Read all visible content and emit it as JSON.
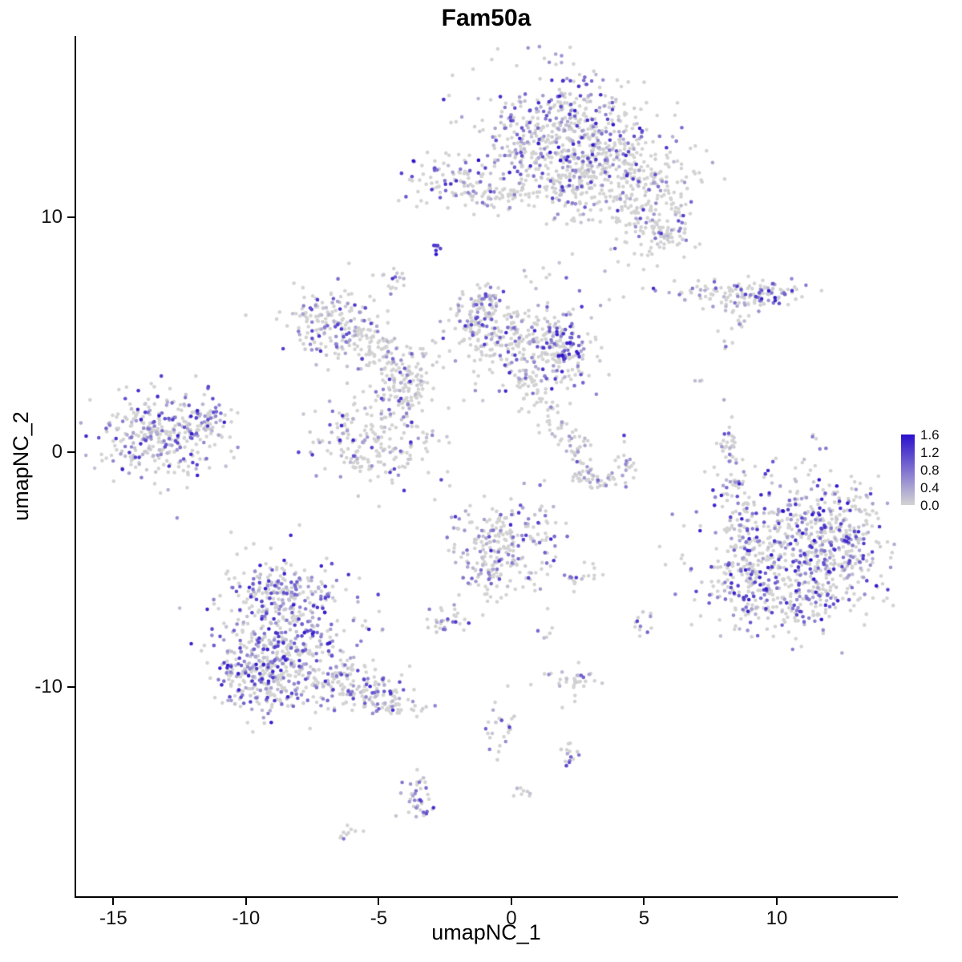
{
  "title": "Fam50a",
  "chart_data": {
    "type": "scatter",
    "variant": "umap-feature-plot",
    "title": "Fam50a",
    "xlabel": "umapNC_1",
    "ylabel": "umapNC_2",
    "xlim": [
      -16.4,
      14.5
    ],
    "ylim": [
      -18.9,
      17.7
    ],
    "x_ticks": {
      "values": [
        -15,
        -10,
        -5,
        0,
        5,
        10
      ],
      "labels": [
        "-15",
        "-10",
        "-5",
        "0",
        "5",
        "10"
      ]
    },
    "y_ticks": {
      "values": [
        10,
        0,
        -10
      ],
      "labels": [
        "10",
        "0",
        "-10"
      ]
    },
    "grid": false,
    "point_radius_px": 2.3,
    "colors": {
      "low": "#d3d3d3",
      "high": "#2a10cc",
      "axis": "#000000",
      "text": "#111111"
    },
    "legend": {
      "position": "right",
      "min": 0.0,
      "max": 1.6,
      "labels": [
        "1.6",
        "1.2",
        "0.8",
        "0.4",
        "0.0"
      ]
    },
    "clusters": [
      {
        "name": "top-core",
        "x": 1.9,
        "y": 14.0,
        "sx": 1.5,
        "sy": 1.3,
        "n": 320,
        "frac": 0.55,
        "vmax": 1.6
      },
      {
        "name": "top-core-b",
        "x": 2.7,
        "y": 13.1,
        "sx": 1.1,
        "sy": 0.9,
        "n": 150,
        "frac": 0.5,
        "vmax": 1.5
      },
      {
        "name": "top-right",
        "x": 4.3,
        "y": 11.9,
        "sx": 1.2,
        "sy": 1.0,
        "n": 220,
        "frac": 0.32,
        "vmax": 1.4
      },
      {
        "name": "top-tail-se",
        "x": 5.3,
        "y": 10.2,
        "sx": 0.8,
        "sy": 0.9,
        "n": 110,
        "frac": 0.3,
        "vmax": 1.3
      },
      {
        "name": "top-tail-tip",
        "x": 5.9,
        "y": 9.4,
        "sx": 0.5,
        "sy": 0.5,
        "n": 50,
        "frac": 0.35,
        "vmax": 1.3
      },
      {
        "name": "top-neck",
        "x": 2.4,
        "y": 11.2,
        "sx": 0.7,
        "sy": 0.8,
        "n": 90,
        "frac": 0.3,
        "vmax": 1.2
      },
      {
        "name": "top-left-edge",
        "x": 0.6,
        "y": 12.6,
        "sx": 0.6,
        "sy": 1.0,
        "n": 80,
        "frac": 0.45,
        "vmax": 1.5
      },
      {
        "name": "upper-left",
        "x": -2.2,
        "y": 11.5,
        "sx": 0.9,
        "sy": 0.55,
        "n": 100,
        "frac": 0.5,
        "vmax": 1.6
      },
      {
        "name": "upper-left-strand",
        "x": -0.7,
        "y": 11.0,
        "sx": 0.6,
        "sy": 0.3,
        "n": 35,
        "frac": 0.25,
        "vmax": 1.0
      },
      {
        "name": "bridge-top",
        "x": 0.2,
        "y": 10.9,
        "sx": 0.5,
        "sy": 0.3,
        "n": 20,
        "frac": 0.2,
        "vmax": 1.0
      },
      {
        "name": "dark-dot",
        "x": -2.8,
        "y": 8.7,
        "sx": 0.12,
        "sy": 0.15,
        "n": 7,
        "frac": 0.9,
        "vmax": 1.6,
        "pow": 0.5
      },
      {
        "name": "small-upper-mid",
        "x": -4.5,
        "y": 7.3,
        "sx": 0.25,
        "sy": 0.25,
        "n": 16,
        "frac": 0.6,
        "vmax": 1.4
      },
      {
        "name": "mid-left",
        "x": -6.8,
        "y": 5.5,
        "sx": 0.95,
        "sy": 0.75,
        "n": 170,
        "frac": 0.45,
        "vmax": 1.4
      },
      {
        "name": "mid-left-trail",
        "x": -5.2,
        "y": 4.4,
        "sx": 0.8,
        "sy": 0.5,
        "n": 80,
        "frac": 0.35,
        "vmax": 1.2
      },
      {
        "name": "mid-left-trail2",
        "x": -3.9,
        "y": 3.5,
        "sx": 0.6,
        "sy": 0.45,
        "n": 55,
        "frac": 0.3,
        "vmax": 1.2
      },
      {
        "name": "center",
        "x": 0.4,
        "y": 4.6,
        "sx": 1.4,
        "sy": 1.0,
        "n": 300,
        "frac": 0.35,
        "vmax": 1.4
      },
      {
        "name": "center-right-edge",
        "x": 2.1,
        "y": 4.5,
        "sx": 0.4,
        "sy": 0.85,
        "n": 75,
        "frac": 0.6,
        "vmax": 1.6,
        "pow": 0.9
      },
      {
        "name": "center-left-lobe",
        "x": -1.1,
        "y": 5.7,
        "sx": 0.6,
        "sy": 0.55,
        "n": 90,
        "frac": 0.4,
        "vmax": 1.4
      },
      {
        "name": "center-top",
        "x": -1.0,
        "y": 6.4,
        "sx": 0.3,
        "sy": 0.3,
        "n": 30,
        "frac": 0.4,
        "vmax": 1.2
      },
      {
        "name": "trail-ci-1",
        "x": 0.6,
        "y": 2.9,
        "sx": 0.4,
        "sy": 0.4,
        "n": 30,
        "frac": 0.2,
        "vmax": 1.0
      },
      {
        "name": "trail-ci-2",
        "x": 1.3,
        "y": 1.9,
        "sx": 0.35,
        "sy": 0.4,
        "n": 25,
        "frac": 0.2,
        "vmax": 1.0
      },
      {
        "name": "trail-ci-3",
        "x": 1.9,
        "y": 0.9,
        "sx": 0.3,
        "sy": 0.35,
        "n": 18,
        "frac": 0.25,
        "vmax": 1.0
      },
      {
        "name": "midlower-left",
        "x": -5.0,
        "y": 0.7,
        "sx": 1.2,
        "sy": 1.1,
        "n": 230,
        "frac": 0.4,
        "vmax": 1.4
      },
      {
        "name": "midlower-left-top",
        "x": -3.9,
        "y": 2.5,
        "sx": 0.6,
        "sy": 0.5,
        "n": 60,
        "frac": 0.35,
        "vmax": 1.3
      },
      {
        "name": "far-left",
        "x": -13.3,
        "y": 0.7,
        "sx": 1.1,
        "sy": 0.85,
        "n": 300,
        "frac": 0.55,
        "vmax": 1.5
      },
      {
        "name": "far-left-tip",
        "x": -11.6,
        "y": 1.5,
        "sx": 0.5,
        "sy": 0.4,
        "n": 55,
        "frac": 0.5,
        "vmax": 1.5
      },
      {
        "name": "far-left-outlier",
        "x": -11.4,
        "y": 2.8,
        "sx": 0.1,
        "sy": 0.1,
        "n": 2,
        "frac": 1.0,
        "vmax": 1.6,
        "pow": 0.3
      },
      {
        "name": "crescent-a",
        "x": 2.4,
        "y": 0.2,
        "sx": 0.3,
        "sy": 0.3,
        "n": 22,
        "frac": 0.4,
        "vmax": 1.4
      },
      {
        "name": "crescent-b",
        "x": 2.7,
        "y": -0.8,
        "sx": 0.3,
        "sy": 0.35,
        "n": 25,
        "frac": 0.5,
        "vmax": 1.4
      },
      {
        "name": "crescent-c",
        "x": 3.5,
        "y": -1.2,
        "sx": 0.4,
        "sy": 0.3,
        "n": 25,
        "frac": 0.5,
        "vmax": 1.4
      },
      {
        "name": "crescent-d",
        "x": 4.2,
        "y": -0.6,
        "sx": 0.25,
        "sy": 0.35,
        "n": 18,
        "frac": 0.45,
        "vmax": 1.3
      },
      {
        "name": "strip-right",
        "x": 8.2,
        "y": 0.1,
        "sx": 0.18,
        "sy": 0.8,
        "n": 35,
        "frac": 0.4,
        "vmax": 1.3
      },
      {
        "name": "strip-right-low",
        "x": 8.3,
        "y": -1.8,
        "sx": 0.2,
        "sy": 0.5,
        "n": 16,
        "frac": 0.4,
        "vmax": 1.2
      },
      {
        "name": "right-band",
        "x": 8.3,
        "y": 6.7,
        "sx": 1.3,
        "sy": 0.3,
        "n": 110,
        "frac": 0.45,
        "vmax": 1.4
      },
      {
        "name": "right-band-tip",
        "x": 9.8,
        "y": 6.8,
        "sx": 0.4,
        "sy": 0.25,
        "n": 30,
        "frac": 0.65,
        "vmax": 1.6,
        "pow": 0.9
      },
      {
        "name": "right-band-sub",
        "x": 8.6,
        "y": 5.7,
        "sx": 0.2,
        "sy": 0.3,
        "n": 10,
        "frac": 0.2,
        "vmax": 0.8
      },
      {
        "name": "right-sparse",
        "x": 8.1,
        "y": 4.6,
        "sx": 0.2,
        "sy": 0.3,
        "n": 5,
        "frac": 0.2,
        "vmax": 0.8
      },
      {
        "name": "right-sparse2",
        "x": 7.1,
        "y": 2.9,
        "sx": 0.15,
        "sy": 0.15,
        "n": 3,
        "frac": 0.3,
        "vmax": 0.8
      },
      {
        "name": "right-big-core",
        "x": 10.9,
        "y": -3.8,
        "sx": 1.7,
        "sy": 1.5,
        "n": 500,
        "frac": 0.45,
        "vmax": 1.6,
        "pow": 1.2
      },
      {
        "name": "right-big-low",
        "x": 10.4,
        "y": -6.0,
        "sx": 1.5,
        "sy": 1.0,
        "n": 250,
        "frac": 0.45,
        "vmax": 1.5,
        "pow": 1.3
      },
      {
        "name": "right-big-left",
        "x": 8.6,
        "y": -4.8,
        "sx": 0.6,
        "sy": 1.2,
        "n": 110,
        "frac": 0.4,
        "vmax": 1.4
      },
      {
        "name": "right-big-right",
        "x": 12.6,
        "y": -3.5,
        "sx": 0.7,
        "sy": 1.0,
        "n": 120,
        "frac": 0.45,
        "vmax": 1.5,
        "pow": 1.2
      },
      {
        "name": "center-low",
        "x": -0.2,
        "y": -3.8,
        "sx": 1.05,
        "sy": 0.95,
        "n": 210,
        "frac": 0.4,
        "vmax": 1.4
      },
      {
        "name": "center-low-tail",
        "x": -0.8,
        "y": -5.2,
        "sx": 0.4,
        "sy": 0.5,
        "n": 45,
        "frac": 0.35,
        "vmax": 1.2
      },
      {
        "name": "center-low-east",
        "x": 2.4,
        "y": -5.2,
        "sx": 0.3,
        "sy": 0.2,
        "n": 12,
        "frac": 0.5,
        "vmax": 1.3
      },
      {
        "name": "center-low-east2",
        "x": 3.1,
        "y": -5.1,
        "sx": 0.15,
        "sy": 0.15,
        "n": 6,
        "frac": 0.4,
        "vmax": 1.2
      },
      {
        "name": "bottomleft-core",
        "x": -8.7,
        "y": -7.7,
        "sx": 1.35,
        "sy": 1.6,
        "n": 450,
        "frac": 0.6,
        "vmax": 1.5,
        "pow": 1.3
      },
      {
        "name": "bottomleft-low",
        "x": -9.5,
        "y": -9.4,
        "sx": 0.95,
        "sy": 0.8,
        "n": 200,
        "frac": 0.55,
        "vmax": 1.5,
        "pow": 1.3
      },
      {
        "name": "bottomleft-trail",
        "x": -6.3,
        "y": -10.0,
        "sx": 1.1,
        "sy": 0.6,
        "n": 150,
        "frac": 0.45,
        "vmax": 1.4
      },
      {
        "name": "bottomleft-tip",
        "x": -4.5,
        "y": -10.6,
        "sx": 0.6,
        "sy": 0.35,
        "n": 60,
        "frac": 0.45,
        "vmax": 1.4
      },
      {
        "name": "bottomleft-top",
        "x": -8.8,
        "y": -5.7,
        "sx": 0.8,
        "sy": 0.5,
        "n": 80,
        "frac": 0.5,
        "vmax": 1.5
      },
      {
        "name": "small-low-left",
        "x": -2.4,
        "y": -7.1,
        "sx": 0.4,
        "sy": 0.35,
        "n": 30,
        "frac": 0.6,
        "vmax": 1.4
      },
      {
        "name": "small-low-right",
        "x": 4.9,
        "y": -7.3,
        "sx": 0.25,
        "sy": 0.4,
        "n": 12,
        "frac": 0.4,
        "vmax": 1.2
      },
      {
        "name": "small-bridge",
        "x": 1.3,
        "y": -7.6,
        "sx": 0.3,
        "sy": 0.5,
        "n": 6,
        "frac": 0.3,
        "vmax": 1.0
      },
      {
        "name": "bottom-q",
        "x": 2.4,
        "y": -9.7,
        "sx": 0.45,
        "sy": 0.35,
        "n": 35,
        "frac": 0.4,
        "vmax": 1.3
      },
      {
        "name": "bottom-trail",
        "x": -0.5,
        "y": -11.9,
        "sx": 0.35,
        "sy": 0.5,
        "n": 25,
        "frac": 0.5,
        "vmax": 1.3
      },
      {
        "name": "bottom-s",
        "x": 2.3,
        "y": -12.8,
        "sx": 0.25,
        "sy": 0.25,
        "n": 15,
        "frac": 0.5,
        "vmax": 1.3
      },
      {
        "name": "bottom-t",
        "x": -3.5,
        "y": -14.7,
        "sx": 0.3,
        "sy": 0.6,
        "n": 40,
        "frac": 0.5,
        "vmax": 1.4
      },
      {
        "name": "bottom-u",
        "x": 0.5,
        "y": -14.5,
        "sx": 0.25,
        "sy": 0.15,
        "n": 8,
        "frac": 0.3,
        "vmax": 1.0
      },
      {
        "name": "bottom-v",
        "x": -6.1,
        "y": -16.2,
        "sx": 0.25,
        "sy": 0.15,
        "n": 10,
        "frac": 0.3,
        "vmax": 1.0
      },
      {
        "name": "sparse-center-top",
        "x": 1.0,
        "y": 7.6,
        "sx": 0.8,
        "sy": 0.5,
        "n": 10,
        "frac": 0.2,
        "vmax": 1.0
      },
      {
        "name": "sparse-mid-low",
        "x": -2.1,
        "y": -4.7,
        "sx": 0.3,
        "sy": 0.3,
        "n": 6,
        "frac": 0.3,
        "vmax": 1.0
      }
    ]
  }
}
